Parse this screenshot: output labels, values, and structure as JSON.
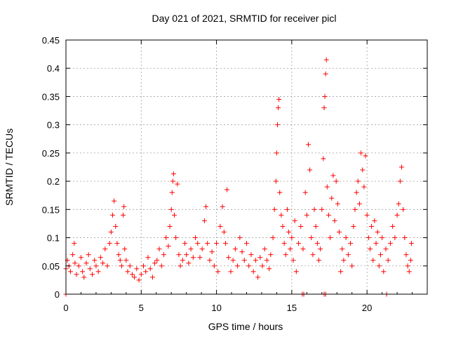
{
  "chart_data": {
    "type": "scatter",
    "title": "Day 021 of 2021, SRMTID for receiver picl",
    "xlabel": "GPS time / hours",
    "ylabel": "SRMTID / TECUs",
    "xlim": [
      0,
      24
    ],
    "ylim": [
      0,
      0.45
    ],
    "xticks": [
      0,
      5,
      10,
      15,
      20
    ],
    "yticks": [
      0,
      0.05,
      0.1,
      0.15,
      0.2,
      0.25,
      0.3,
      0.35,
      0.4,
      0.45
    ],
    "xtick_labels": [
      "0",
      "5",
      "10",
      "15",
      "20"
    ],
    "ytick_labels": [
      "0",
      "0.05",
      "0.1",
      "0.15",
      "0.2",
      "0.25",
      "0.3",
      "0.35",
      "0.4",
      "0.45"
    ],
    "grid": true,
    "marker": "+",
    "color": "#ff0000",
    "series": [
      {
        "name": "SRMTID",
        "points": [
          [
            0.0,
            0.045
          ],
          [
            0.1,
            0.06
          ],
          [
            0.2,
            0.05
          ],
          [
            0.3,
            0.04
          ],
          [
            0.45,
            0.07
          ],
          [
            0.55,
            0.09
          ],
          [
            0.6,
            0.055
          ],
          [
            0.7,
            0.035
          ],
          [
            0.85,
            0.05
          ],
          [
            1.0,
            0.065
          ],
          [
            1.1,
            0.04
          ],
          [
            1.2,
            0.03
          ],
          [
            1.35,
            0.055
          ],
          [
            1.5,
            0.07
          ],
          [
            1.6,
            0.045
          ],
          [
            1.75,
            0.035
          ],
          [
            1.9,
            0.06
          ],
          [
            2.0,
            0.05
          ],
          [
            2.15,
            0.04
          ],
          [
            2.3,
            0.065
          ],
          [
            2.45,
            0.055
          ],
          [
            2.6,
            0.08
          ],
          [
            2.75,
            0.05
          ],
          [
            2.9,
            0.09
          ],
          [
            3.0,
            0.11
          ],
          [
            3.1,
            0.14
          ],
          [
            3.2,
            0.165
          ],
          [
            3.3,
            0.12
          ],
          [
            3.4,
            0.09
          ],
          [
            3.5,
            0.07
          ],
          [
            3.6,
            0.06
          ],
          [
            3.7,
            0.05
          ],
          [
            3.8,
            0.14
          ],
          [
            3.85,
            0.155
          ],
          [
            3.9,
            0.08
          ],
          [
            4.0,
            0.06
          ],
          [
            4.1,
            0.04
          ],
          [
            4.25,
            0.05
          ],
          [
            4.4,
            0.035
          ],
          [
            4.55,
            0.03
          ],
          [
            4.7,
            0.045
          ],
          [
            4.85,
            0.025
          ],
          [
            5.0,
            0.035
          ],
          [
            5.15,
            0.05
          ],
          [
            5.3,
            0.04
          ],
          [
            5.45,
            0.065
          ],
          [
            5.6,
            0.045
          ],
          [
            5.75,
            0.03
          ],
          [
            5.9,
            0.055
          ],
          [
            6.05,
            0.06
          ],
          [
            6.2,
            0.08
          ],
          [
            6.35,
            0.05
          ],
          [
            6.5,
            0.07
          ],
          [
            6.65,
            0.1
          ],
          [
            6.8,
            0.085
          ],
          [
            6.9,
            0.12
          ],
          [
            7.0,
            0.15
          ],
          [
            7.05,
            0.18
          ],
          [
            7.1,
            0.2
          ],
          [
            7.15,
            0.213
          ],
          [
            7.2,
            0.14
          ],
          [
            7.3,
            0.1
          ],
          [
            7.4,
            0.195
          ],
          [
            7.5,
            0.07
          ],
          [
            7.6,
            0.05
          ],
          [
            7.75,
            0.06
          ],
          [
            7.9,
            0.09
          ],
          [
            8.0,
            0.07
          ],
          [
            8.15,
            0.055
          ],
          [
            8.3,
            0.08
          ],
          [
            8.45,
            0.065
          ],
          [
            8.6,
            0.1
          ],
          [
            8.75,
            0.09
          ],
          [
            8.9,
            0.065
          ],
          [
            9.05,
            0.08
          ],
          [
            9.2,
            0.13
          ],
          [
            9.3,
            0.155
          ],
          [
            9.4,
            0.09
          ],
          [
            9.55,
            0.06
          ],
          [
            9.7,
            0.075
          ],
          [
            9.85,
            0.05
          ],
          [
            10.0,
            0.09
          ],
          [
            10.1,
            0.04
          ],
          [
            10.25,
            0.12
          ],
          [
            10.4,
            0.155
          ],
          [
            10.5,
            0.11
          ],
          [
            10.6,
            0.09
          ],
          [
            10.7,
            0.185
          ],
          [
            10.8,
            0.065
          ],
          [
            10.95,
            0.04
          ],
          [
            11.1,
            0.06
          ],
          [
            11.25,
            0.08
          ],
          [
            11.4,
            0.05
          ],
          [
            11.55,
            0.1
          ],
          [
            11.7,
            0.075
          ],
          [
            11.85,
            0.06
          ],
          [
            12.0,
            0.09
          ],
          [
            12.15,
            0.05
          ],
          [
            12.3,
            0.07
          ],
          [
            12.45,
            0.04
          ],
          [
            12.6,
            0.06
          ],
          [
            12.75,
            0.03
          ],
          [
            12.9,
            0.065
          ],
          [
            13.05,
            0.05
          ],
          [
            13.2,
            0.08
          ],
          [
            13.35,
            0.06
          ],
          [
            13.5,
            0.045
          ],
          [
            13.6,
            0.07
          ],
          [
            13.75,
            0.1
          ],
          [
            13.85,
            0.15
          ],
          [
            13.95,
            0.2
          ],
          [
            14.0,
            0.25
          ],
          [
            14.05,
            0.3
          ],
          [
            14.1,
            0.33
          ],
          [
            14.15,
            0.345
          ],
          [
            14.2,
            0.18
          ],
          [
            14.3,
            0.14
          ],
          [
            14.4,
            0.12
          ],
          [
            14.5,
            0.09
          ],
          [
            14.6,
            0.07
          ],
          [
            14.7,
            0.15
          ],
          [
            14.8,
            0.11
          ],
          [
            14.9,
            0.08
          ],
          [
            15.0,
            0.1
          ],
          [
            15.1,
            0.06
          ],
          [
            15.2,
            0.13
          ],
          [
            15.3,
            0.04
          ],
          [
            15.45,
            0.09
          ],
          [
            15.6,
            0.12
          ],
          [
            15.75,
            0.08
          ],
          [
            15.9,
            0.18
          ],
          [
            16.0,
            0.14
          ],
          [
            16.1,
            0.265
          ],
          [
            16.2,
            0.22
          ],
          [
            16.3,
            0.1
          ],
          [
            16.4,
            0.07
          ],
          [
            16.5,
            0.15
          ],
          [
            16.6,
            0.12
          ],
          [
            16.7,
            0.09
          ],
          [
            16.8,
            0.06
          ],
          [
            16.9,
            0.08
          ],
          [
            17.0,
            0.15
          ],
          [
            17.1,
            0.24
          ],
          [
            17.15,
            0.33
          ],
          [
            17.2,
            0.35
          ],
          [
            17.25,
            0.39
          ],
          [
            17.3,
            0.415
          ],
          [
            17.35,
            0.19
          ],
          [
            17.45,
            0.14
          ],
          [
            17.55,
            0.1
          ],
          [
            17.65,
            0.17
          ],
          [
            17.75,
            0.21
          ],
          [
            17.85,
            0.13
          ],
          [
            17.95,
            0.2
          ],
          [
            18.05,
            0.16
          ],
          [
            18.15,
            0.11
          ],
          [
            18.25,
            0.04
          ],
          [
            18.35,
            0.08
          ],
          [
            18.45,
            0.06
          ],
          [
            18.6,
            0.1
          ],
          [
            18.75,
            0.07
          ],
          [
            18.9,
            0.09
          ],
          [
            19.0,
            0.05
          ],
          [
            19.1,
            0.12
          ],
          [
            19.2,
            0.15
          ],
          [
            19.3,
            0.18
          ],
          [
            19.4,
            0.2
          ],
          [
            19.5,
            0.16
          ],
          [
            19.6,
            0.25
          ],
          [
            19.7,
            0.22
          ],
          [
            19.8,
            0.19
          ],
          [
            19.9,
            0.245
          ],
          [
            20.0,
            0.14
          ],
          [
            20.1,
            0.1
          ],
          [
            20.2,
            0.08
          ],
          [
            20.3,
            0.12
          ],
          [
            20.4,
            0.06
          ],
          [
            20.5,
            0.13
          ],
          [
            20.6,
            0.09
          ],
          [
            20.7,
            0.11
          ],
          [
            20.8,
            0.05
          ],
          [
            20.9,
            0.07
          ],
          [
            21.0,
            0.1
          ],
          [
            21.1,
            0.04
          ],
          [
            21.25,
            0.08
          ],
          [
            21.4,
            0.06
          ],
          [
            21.55,
            0.09
          ],
          [
            21.7,
            0.12
          ],
          [
            21.85,
            0.1
          ],
          [
            22.0,
            0.14
          ],
          [
            22.1,
            0.16
          ],
          [
            22.2,
            0.2
          ],
          [
            22.3,
            0.225
          ],
          [
            22.4,
            0.15
          ],
          [
            22.5,
            0.1
          ],
          [
            22.6,
            0.07
          ],
          [
            22.7,
            0.05
          ],
          [
            22.8,
            0.04
          ],
          [
            22.9,
            0.06
          ],
          [
            22.95,
            0.09
          ],
          [
            15.7,
            0.0
          ],
          [
            15.8,
            0.0
          ],
          [
            17.15,
            0.0
          ],
          [
            17.25,
            0.0
          ],
          [
            21.3,
            0.0
          ],
          [
            0.0,
            0.0
          ]
        ]
      }
    ]
  }
}
